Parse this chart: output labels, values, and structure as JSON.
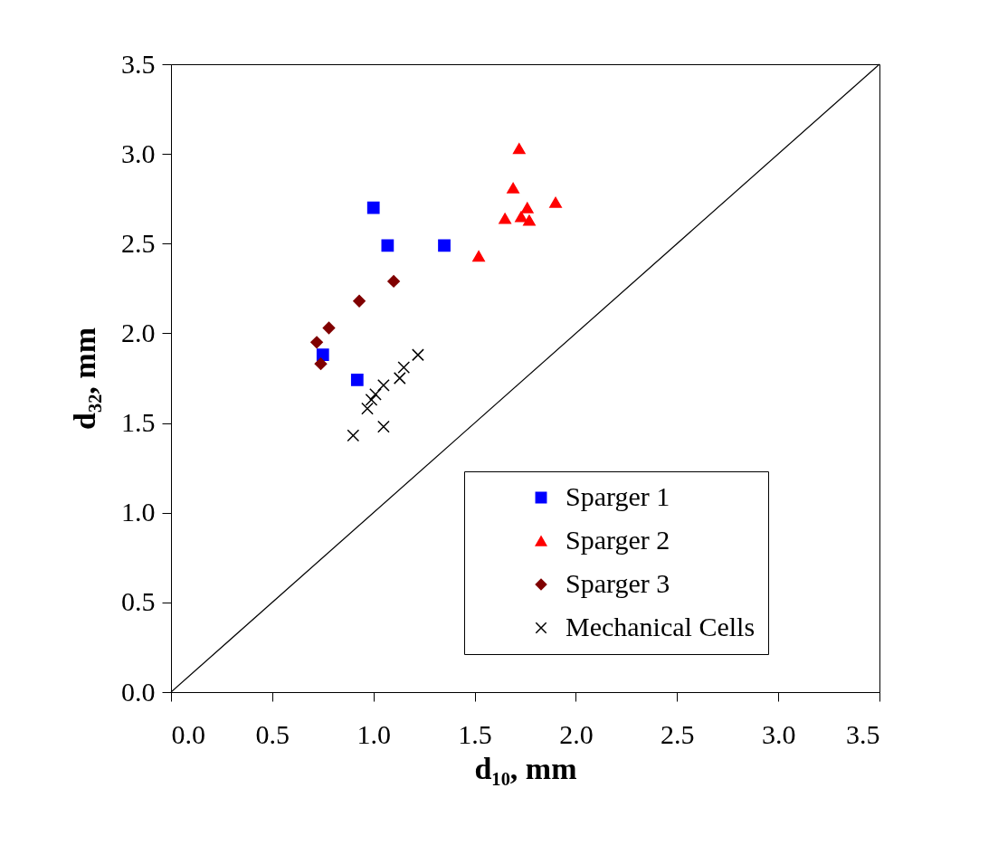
{
  "chart_data": {
    "type": "scatter",
    "xlabel": "d₁₀, mm",
    "ylabel": "d₃₂, mm",
    "xlim": [
      0,
      3.5
    ],
    "ylim": [
      0,
      3.5
    ],
    "xticks": [
      {
        "value": 0,
        "label": "0.0"
      },
      0.5,
      {
        "value": 1,
        "label": "1.0"
      },
      1.5,
      {
        "value": 2,
        "label": "2.0"
      },
      2.5,
      {
        "value": 3,
        "label": "3.0"
      },
      3.5
    ],
    "yticks": [
      {
        "value": 0,
        "label": "0.0"
      },
      0.5,
      {
        "value": 1,
        "label": "1.0"
      },
      1.5,
      {
        "value": 2,
        "label": "2.0"
      },
      2.5,
      {
        "value": 3,
        "label": "3.0"
      },
      3.5
    ],
    "grid": false,
    "legend": "bottom right",
    "series": [
      {
        "name": "Sparger 1",
        "color": "#0000ff",
        "marker": "square",
        "x": [
          1.0,
          1.07,
          1.35,
          0.75,
          0.92
        ],
        "values": [
          2.7,
          2.49,
          2.49,
          1.88,
          1.74
        ]
      },
      {
        "name": "Sparger 2",
        "color": "#ff0000",
        "marker": "triangle",
        "x": [
          1.72,
          1.69,
          1.52,
          1.65,
          1.73,
          1.76,
          1.77,
          1.9
        ],
        "values": [
          3.03,
          2.81,
          2.43,
          2.64,
          2.65,
          2.7,
          2.63,
          2.73
        ]
      },
      {
        "name": "Sparger 3",
        "color": "#800000",
        "marker": "diamond",
        "x": [
          1.1,
          0.93,
          0.78,
          0.72,
          0.74
        ],
        "values": [
          2.29,
          2.18,
          2.03,
          1.95,
          1.83
        ]
      },
      {
        "name": "Mechanical Cells",
        "color": "#000000",
        "marker": "cross",
        "x": [
          1.22,
          1.15,
          1.13,
          1.05,
          1.01,
          0.99,
          0.97,
          0.9,
          1.05
        ],
        "values": [
          1.88,
          1.81,
          1.75,
          1.71,
          1.66,
          1.63,
          1.58,
          1.43,
          1.48
        ]
      },
      {
        "type": "line",
        "color": "#000000",
        "marker": "none",
        "line_style": "solid",
        "x": [
          0,
          3.5
        ],
        "values": [
          0,
          3.5
        ]
      }
    ]
  }
}
